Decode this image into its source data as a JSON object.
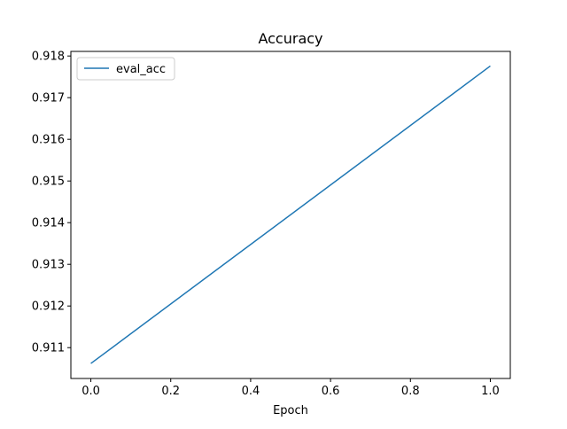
{
  "chart_data": {
    "type": "line",
    "title": "Accuracy",
    "xlabel": "Epoch",
    "ylabel": "",
    "x": [
      0,
      1
    ],
    "xlim": [
      -0.05,
      1.05
    ],
    "ylim": [
      0.91026,
      0.91811
    ],
    "xticks": [
      0.0,
      0.2,
      0.4,
      0.6,
      0.8,
      1.0
    ],
    "xtick_labels": [
      "0.0",
      "0.2",
      "0.4",
      "0.6",
      "0.8",
      "1.0"
    ],
    "yticks": [
      0.911,
      0.912,
      0.913,
      0.914,
      0.915,
      0.916,
      0.917,
      0.918
    ],
    "ytick_labels": [
      "0.911",
      "0.912",
      "0.913",
      "0.914",
      "0.915",
      "0.916",
      "0.917",
      "0.918"
    ],
    "grid": false,
    "legend_position": "top-left",
    "series": [
      {
        "name": "eval_acc",
        "color": "#1f77b4",
        "values": [
          0.91062,
          0.91776
        ]
      }
    ]
  }
}
